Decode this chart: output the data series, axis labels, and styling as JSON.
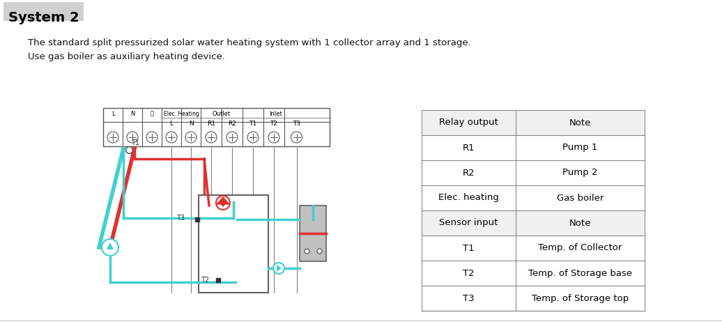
{
  "title": "System 2",
  "title_bg": "#d0d0d0",
  "description_line1": "The standard split pressurized solar water heating system with 1 collector array and 1 storage.",
  "description_line2": "Use gas boiler as auxiliary heating device.",
  "bg_color": "#ffffff",
  "table_data": [
    [
      "Relay output",
      "Note"
    ],
    [
      "R1",
      "Pump 1"
    ],
    [
      "R2",
      "Pump 2"
    ],
    [
      "Elec. heating",
      "Gas boiler"
    ],
    [
      "Sensor input",
      "Note"
    ],
    [
      "T1",
      "Temp. of Collector"
    ],
    [
      "T2",
      "Temp. of Storage base"
    ],
    [
      "T3",
      "Temp. of Storage top"
    ]
  ],
  "table_header_rows": [
    0,
    4
  ],
  "colors": {
    "red_pipe": "#e03030",
    "cyan_pipe": "#40d0d0",
    "gray_wire": "#808080",
    "black_wire": "#202020",
    "dark_gray": "#606060",
    "light_gray": "#c0c0c0",
    "panel_bg": "#f5f5f5",
    "border": "#555555"
  }
}
